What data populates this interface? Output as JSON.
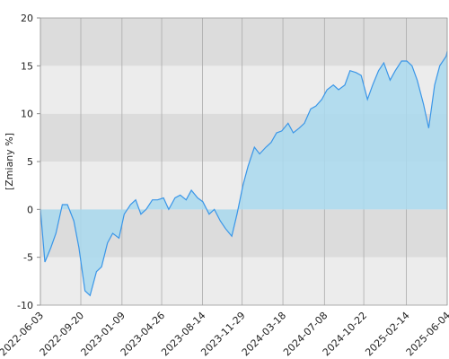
{
  "chart_data": {
    "type": "area",
    "y_label": "[Zmiany %]",
    "color": "#3a96e8",
    "fill": "#a9d9ee",
    "band_colors": [
      "#dcdcdc",
      "#ececec"
    ],
    "x": [
      "2022-06-03",
      "2022-06-15",
      "2022-07-01",
      "2022-07-15",
      "2022-08-01",
      "2022-08-15",
      "2022-09-01",
      "2022-09-15",
      "2022-10-01",
      "2022-10-15",
      "2022-11-01",
      "2022-11-15",
      "2022-12-01",
      "2022-12-15",
      "2023-01-01",
      "2023-01-15",
      "2023-02-01",
      "2023-02-15",
      "2023-03-01",
      "2023-03-15",
      "2023-04-01",
      "2023-04-15",
      "2023-05-01",
      "2023-05-15",
      "2023-06-01",
      "2023-06-15",
      "2023-07-01",
      "2023-07-15",
      "2023-08-01",
      "2023-08-15",
      "2023-09-01",
      "2023-09-15",
      "2023-10-01",
      "2023-10-15",
      "2023-11-01",
      "2023-11-15",
      "2023-12-01",
      "2023-12-15",
      "2024-01-01",
      "2024-01-15",
      "2024-02-01",
      "2024-02-15",
      "2024-03-01",
      "2024-03-15",
      "2024-04-01",
      "2024-04-15",
      "2024-05-01",
      "2024-05-15",
      "2024-06-01",
      "2024-06-15",
      "2024-07-01",
      "2024-07-15",
      "2024-08-01",
      "2024-08-15",
      "2024-09-01",
      "2024-09-15",
      "2024-10-01",
      "2024-10-15",
      "2024-11-01",
      "2024-11-15",
      "2024-12-01",
      "2024-12-15",
      "2025-01-01",
      "2025-01-15",
      "2025-02-01",
      "2025-02-15",
      "2025-03-01",
      "2025-03-15",
      "2025-04-01",
      "2025-04-15",
      "2025-05-01",
      "2025-05-15",
      "2025-06-01",
      "2025-06-04"
    ],
    "values": [
      0,
      -5.5,
      -4,
      -2.5,
      0.5,
      0.5,
      -1.2,
      -4,
      -8.5,
      -9,
      -6.5,
      -6,
      -3.5,
      -2.5,
      -3,
      -0.5,
      0.5,
      1,
      -0.5,
      0,
      1,
      1,
      1.2,
      0,
      1.2,
      1.5,
      1,
      2,
      1.2,
      0.8,
      -0.5,
      0,
      -1.2,
      -2,
      -2.8,
      -0.5,
      2.5,
      4.5,
      6.5,
      5.8,
      6.5,
      7,
      8,
      8.2,
      9,
      8,
      8.5,
      9,
      10.5,
      10.8,
      11.5,
      12.5,
      13,
      12.5,
      13,
      14.5,
      14.3,
      14,
      11.5,
      13,
      14.5,
      15.3,
      13.5,
      14.5,
      15.5,
      15.5,
      15,
      13.5,
      11,
      8.5,
      13,
      15,
      16,
      16.5
    ],
    "xlim": [
      "2022-06-03",
      "2025-06-04"
    ],
    "xticks": [
      "2022-06-03",
      "2022-09-20",
      "2023-01-09",
      "2023-04-26",
      "2023-08-14",
      "2023-11-29",
      "2024-03-18",
      "2024-07-08",
      "2024-10-22",
      "2025-02-14",
      "2025-06-04"
    ],
    "ylim": [
      -10,
      20
    ],
    "yticks": [
      -10,
      -5,
      0,
      5,
      10,
      15,
      20
    ],
    "grid": true
  }
}
